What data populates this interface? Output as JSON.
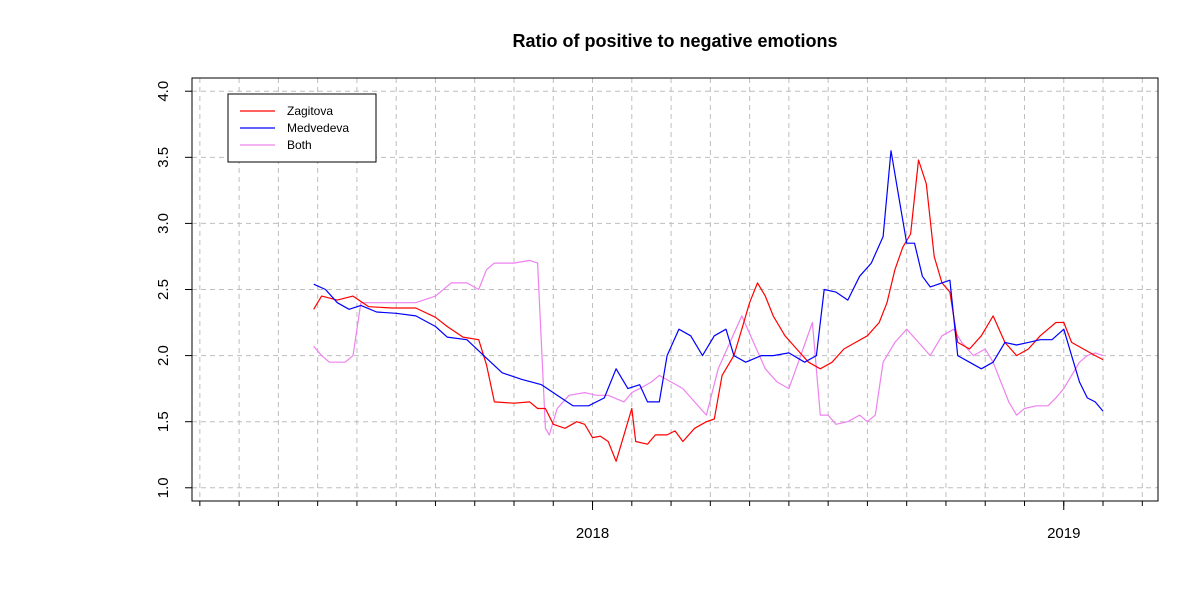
{
  "chart_data": {
    "type": "line",
    "title": "Ratio of positive to negative emotions",
    "xlabel": "",
    "ylabel": "",
    "x_unit": "months",
    "x_ticks": [
      {
        "x": 6,
        "label": "2018"
      },
      {
        "x": 18,
        "label": "2019"
      }
    ],
    "xlim": [
      -4.2,
      20.4
    ],
    "ylim": [
      0.9,
      4.1
    ],
    "y_ticks": [
      1.0,
      1.5,
      2.0,
      2.5,
      3.0,
      3.5,
      4.0
    ],
    "y_tick_labels": [
      "1.0",
      "1.5",
      "2.0",
      "2.5",
      "3.0",
      "3.5",
      "4.0"
    ],
    "grid": true,
    "legend_position": "top-left",
    "series": [
      {
        "name": "Zagitova",
        "color": "#ff0000",
        "points": [
          [
            -1.1,
            2.35
          ],
          [
            -0.9,
            2.45
          ],
          [
            -0.5,
            2.42
          ],
          [
            -0.1,
            2.45
          ],
          [
            0.3,
            2.37
          ],
          [
            0.9,
            2.36
          ],
          [
            1.5,
            2.36
          ],
          [
            2.0,
            2.29
          ],
          [
            2.3,
            2.22
          ],
          [
            2.7,
            2.14
          ],
          [
            3.1,
            2.12
          ],
          [
            3.3,
            1.93
          ],
          [
            3.5,
            1.65
          ],
          [
            4.0,
            1.64
          ],
          [
            4.4,
            1.65
          ],
          [
            4.6,
            1.6
          ],
          [
            4.8,
            1.6
          ],
          [
            5.0,
            1.48
          ],
          [
            5.3,
            1.45
          ],
          [
            5.6,
            1.5
          ],
          [
            5.8,
            1.48
          ],
          [
            6.0,
            1.38
          ],
          [
            6.2,
            1.39
          ],
          [
            6.4,
            1.35
          ],
          [
            6.6,
            1.2
          ],
          [
            6.8,
            1.4
          ],
          [
            7.0,
            1.6
          ],
          [
            7.1,
            1.35
          ],
          [
            7.4,
            1.33
          ],
          [
            7.6,
            1.4
          ],
          [
            7.9,
            1.4
          ],
          [
            8.1,
            1.43
          ],
          [
            8.3,
            1.35
          ],
          [
            8.6,
            1.45
          ],
          [
            8.9,
            1.5
          ],
          [
            9.1,
            1.52
          ],
          [
            9.3,
            1.85
          ],
          [
            9.6,
            2.0
          ],
          [
            9.8,
            2.2
          ],
          [
            10.0,
            2.4
          ],
          [
            10.2,
            2.55
          ],
          [
            10.4,
            2.45
          ],
          [
            10.6,
            2.3
          ],
          [
            10.9,
            2.15
          ],
          [
            11.2,
            2.05
          ],
          [
            11.5,
            1.95
          ],
          [
            11.8,
            1.9
          ],
          [
            12.1,
            1.95
          ],
          [
            12.4,
            2.05
          ],
          [
            12.7,
            2.1
          ],
          [
            13.0,
            2.15
          ],
          [
            13.3,
            2.25
          ],
          [
            13.5,
            2.4
          ],
          [
            13.7,
            2.65
          ],
          [
            13.9,
            2.82
          ],
          [
            14.1,
            2.92
          ],
          [
            14.3,
            3.48
          ],
          [
            14.5,
            3.3
          ],
          [
            14.7,
            2.75
          ],
          [
            14.9,
            2.55
          ],
          [
            15.1,
            2.48
          ],
          [
            15.3,
            2.1
          ],
          [
            15.6,
            2.05
          ],
          [
            15.9,
            2.15
          ],
          [
            16.2,
            2.3
          ],
          [
            16.5,
            2.1
          ],
          [
            16.8,
            2.0
          ],
          [
            17.1,
            2.05
          ],
          [
            17.4,
            2.15
          ],
          [
            17.8,
            2.25
          ],
          [
            18.0,
            2.25
          ],
          [
            18.2,
            2.1
          ],
          [
            18.5,
            2.05
          ],
          [
            18.8,
            2.0
          ],
          [
            19.0,
            1.97
          ]
        ]
      },
      {
        "name": "Medvedeva",
        "color": "#0000ff",
        "points": [
          [
            -1.1,
            2.54
          ],
          [
            -0.8,
            2.5
          ],
          [
            -0.5,
            2.4
          ],
          [
            -0.2,
            2.35
          ],
          [
            0.1,
            2.38
          ],
          [
            0.5,
            2.33
          ],
          [
            1.0,
            2.32
          ],
          [
            1.5,
            2.3
          ],
          [
            2.0,
            2.22
          ],
          [
            2.3,
            2.14
          ],
          [
            2.8,
            2.12
          ],
          [
            3.3,
            1.98
          ],
          [
            3.7,
            1.87
          ],
          [
            4.2,
            1.82
          ],
          [
            4.7,
            1.78
          ],
          [
            5.1,
            1.7
          ],
          [
            5.5,
            1.62
          ],
          [
            5.9,
            1.62
          ],
          [
            6.3,
            1.68
          ],
          [
            6.6,
            1.9
          ],
          [
            6.9,
            1.75
          ],
          [
            7.2,
            1.78
          ],
          [
            7.4,
            1.65
          ],
          [
            7.7,
            1.65
          ],
          [
            7.9,
            2.0
          ],
          [
            8.2,
            2.2
          ],
          [
            8.5,
            2.15
          ],
          [
            8.8,
            2.0
          ],
          [
            9.1,
            2.15
          ],
          [
            9.4,
            2.2
          ],
          [
            9.6,
            2.0
          ],
          [
            9.9,
            1.95
          ],
          [
            10.3,
            2.0
          ],
          [
            10.6,
            2.0
          ],
          [
            11.0,
            2.02
          ],
          [
            11.4,
            1.95
          ],
          [
            11.7,
            2.0
          ],
          [
            11.9,
            2.5
          ],
          [
            12.2,
            2.48
          ],
          [
            12.5,
            2.42
          ],
          [
            12.8,
            2.6
          ],
          [
            13.1,
            2.7
          ],
          [
            13.4,
            2.9
          ],
          [
            13.6,
            3.55
          ],
          [
            13.8,
            3.2
          ],
          [
            14.0,
            2.85
          ],
          [
            14.2,
            2.85
          ],
          [
            14.4,
            2.6
          ],
          [
            14.6,
            2.52
          ],
          [
            14.9,
            2.55
          ],
          [
            15.1,
            2.57
          ],
          [
            15.3,
            2.0
          ],
          [
            15.6,
            1.95
          ],
          [
            15.9,
            1.9
          ],
          [
            16.2,
            1.95
          ],
          [
            16.5,
            2.1
          ],
          [
            16.8,
            2.08
          ],
          [
            17.1,
            2.1
          ],
          [
            17.4,
            2.12
          ],
          [
            17.7,
            2.12
          ],
          [
            18.0,
            2.2
          ],
          [
            18.2,
            2.0
          ],
          [
            18.4,
            1.8
          ],
          [
            18.6,
            1.68
          ],
          [
            18.8,
            1.65
          ],
          [
            19.0,
            1.58
          ]
        ]
      },
      {
        "name": "Both",
        "color": "#ee82ee",
        "points": [
          [
            -1.1,
            2.07
          ],
          [
            -0.9,
            2.0
          ],
          [
            -0.7,
            1.95
          ],
          [
            -0.3,
            1.95
          ],
          [
            -0.1,
            2.0
          ],
          [
            0.1,
            2.4
          ],
          [
            0.8,
            2.4
          ],
          [
            1.5,
            2.4
          ],
          [
            2.0,
            2.45
          ],
          [
            2.4,
            2.55
          ],
          [
            2.8,
            2.55
          ],
          [
            3.1,
            2.5
          ],
          [
            3.3,
            2.65
          ],
          [
            3.5,
            2.7
          ],
          [
            4.0,
            2.7
          ],
          [
            4.4,
            2.72
          ],
          [
            4.6,
            2.7
          ],
          [
            4.8,
            1.45
          ],
          [
            4.9,
            1.4
          ],
          [
            5.1,
            1.6
          ],
          [
            5.4,
            1.7
          ],
          [
            5.8,
            1.72
          ],
          [
            6.1,
            1.7
          ],
          [
            6.4,
            1.7
          ],
          [
            6.8,
            1.65
          ],
          [
            7.0,
            1.72
          ],
          [
            7.2,
            1.75
          ],
          [
            7.5,
            1.8
          ],
          [
            7.7,
            1.85
          ],
          [
            8.0,
            1.8
          ],
          [
            8.3,
            1.75
          ],
          [
            8.6,
            1.65
          ],
          [
            8.9,
            1.55
          ],
          [
            9.2,
            1.9
          ],
          [
            9.5,
            2.1
          ],
          [
            9.8,
            2.3
          ],
          [
            10.1,
            2.1
          ],
          [
            10.4,
            1.9
          ],
          [
            10.7,
            1.8
          ],
          [
            11.0,
            1.75
          ],
          [
            11.3,
            2.0
          ],
          [
            11.6,
            2.25
          ],
          [
            11.8,
            1.55
          ],
          [
            12.0,
            1.55
          ],
          [
            12.2,
            1.48
          ],
          [
            12.5,
            1.5
          ],
          [
            12.8,
            1.55
          ],
          [
            13.0,
            1.5
          ],
          [
            13.2,
            1.55
          ],
          [
            13.4,
            1.95
          ],
          [
            13.7,
            2.1
          ],
          [
            14.0,
            2.2
          ],
          [
            14.3,
            2.1
          ],
          [
            14.6,
            2.0
          ],
          [
            14.9,
            2.15
          ],
          [
            15.2,
            2.2
          ],
          [
            15.4,
            2.1
          ],
          [
            15.7,
            2.0
          ],
          [
            16.0,
            2.05
          ],
          [
            16.2,
            1.95
          ],
          [
            16.4,
            1.8
          ],
          [
            16.6,
            1.65
          ],
          [
            16.8,
            1.55
          ],
          [
            17.0,
            1.6
          ],
          [
            17.3,
            1.62
          ],
          [
            17.6,
            1.62
          ],
          [
            17.8,
            1.68
          ],
          [
            18.0,
            1.75
          ],
          [
            18.2,
            1.85
          ],
          [
            18.4,
            1.95
          ],
          [
            18.6,
            2.0
          ],
          [
            18.8,
            2.02
          ],
          [
            19.0,
            2.0
          ]
        ]
      }
    ]
  }
}
